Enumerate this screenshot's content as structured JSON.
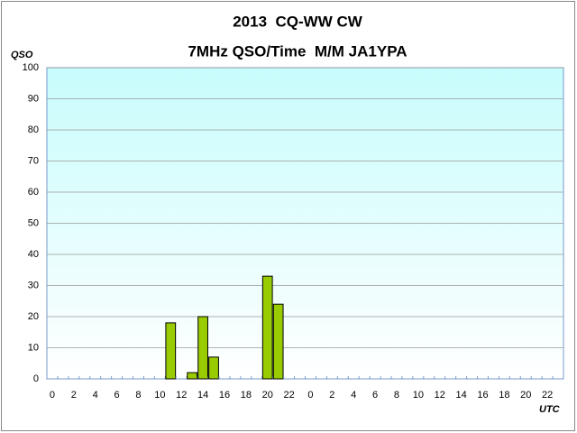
{
  "chart_data": {
    "type": "bar",
    "title": "2013  CQ-WW CW",
    "subtitle": "7MHz QSO/Time  M/M JA1YPA",
    "y_label": "QSO",
    "x_label": "UTC",
    "categories": [
      "0",
      null,
      "2",
      null,
      "4",
      null,
      "6",
      null,
      "8",
      null,
      "10",
      null,
      "12",
      null,
      "14",
      null,
      "16",
      null,
      "18",
      null,
      "20",
      null,
      "22",
      null,
      "0",
      null,
      "2",
      null,
      "4",
      null,
      "6",
      null,
      "8",
      null,
      "10",
      null,
      "12",
      null,
      "14",
      null,
      "16",
      null,
      "18",
      null,
      "20",
      null,
      "22",
      null
    ],
    "values": [
      0,
      0,
      0,
      0,
      0,
      0,
      0,
      0,
      0,
      0,
      0,
      18,
      0,
      2,
      20,
      7,
      0,
      0,
      0,
      0,
      33,
      24,
      0,
      0,
      0,
      0,
      0,
      0,
      0,
      0,
      0,
      0,
      0,
      0,
      0,
      0,
      0,
      0,
      0,
      0,
      0,
      0,
      0,
      0,
      0,
      0,
      0,
      0
    ],
    "color": "#99cc00",
    "ylim": [
      0,
      100
    ],
    "yticks": [
      0,
      10,
      20,
      30,
      40,
      50,
      60,
      70,
      80,
      90,
      100
    ],
    "grid": true
  }
}
